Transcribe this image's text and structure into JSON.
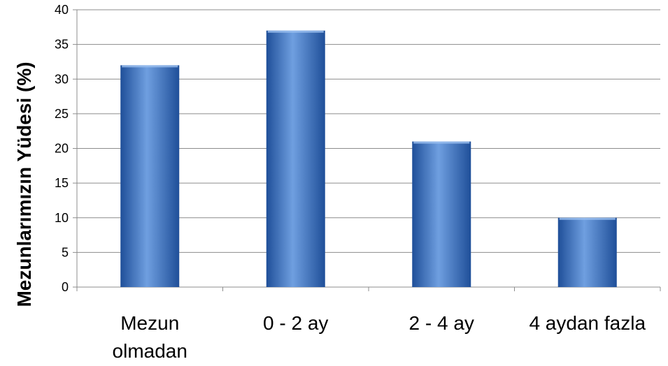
{
  "chart_data": {
    "type": "bar",
    "title": "",
    "xlabel": "",
    "ylabel": "Mezunlarımızın  Yüdesi  (%)",
    "categories": [
      [
        "Mezun",
        "olmadan"
      ],
      [
        "0 - 2 ay"
      ],
      [
        "2 - 4 ay"
      ],
      [
        "4 aydan fazla"
      ]
    ],
    "values": [
      32,
      37,
      21,
      10
    ],
    "ylim": [
      0,
      40
    ],
    "yticks": [
      0,
      5,
      10,
      15,
      20,
      25,
      30,
      35,
      40
    ],
    "grid": true,
    "legend": "none",
    "colors": {
      "bar": "#4a7fc9",
      "bar_light": "#6f9fe0",
      "bar_dark": "#1f4f99",
      "grid": "#8c8c8c"
    }
  }
}
